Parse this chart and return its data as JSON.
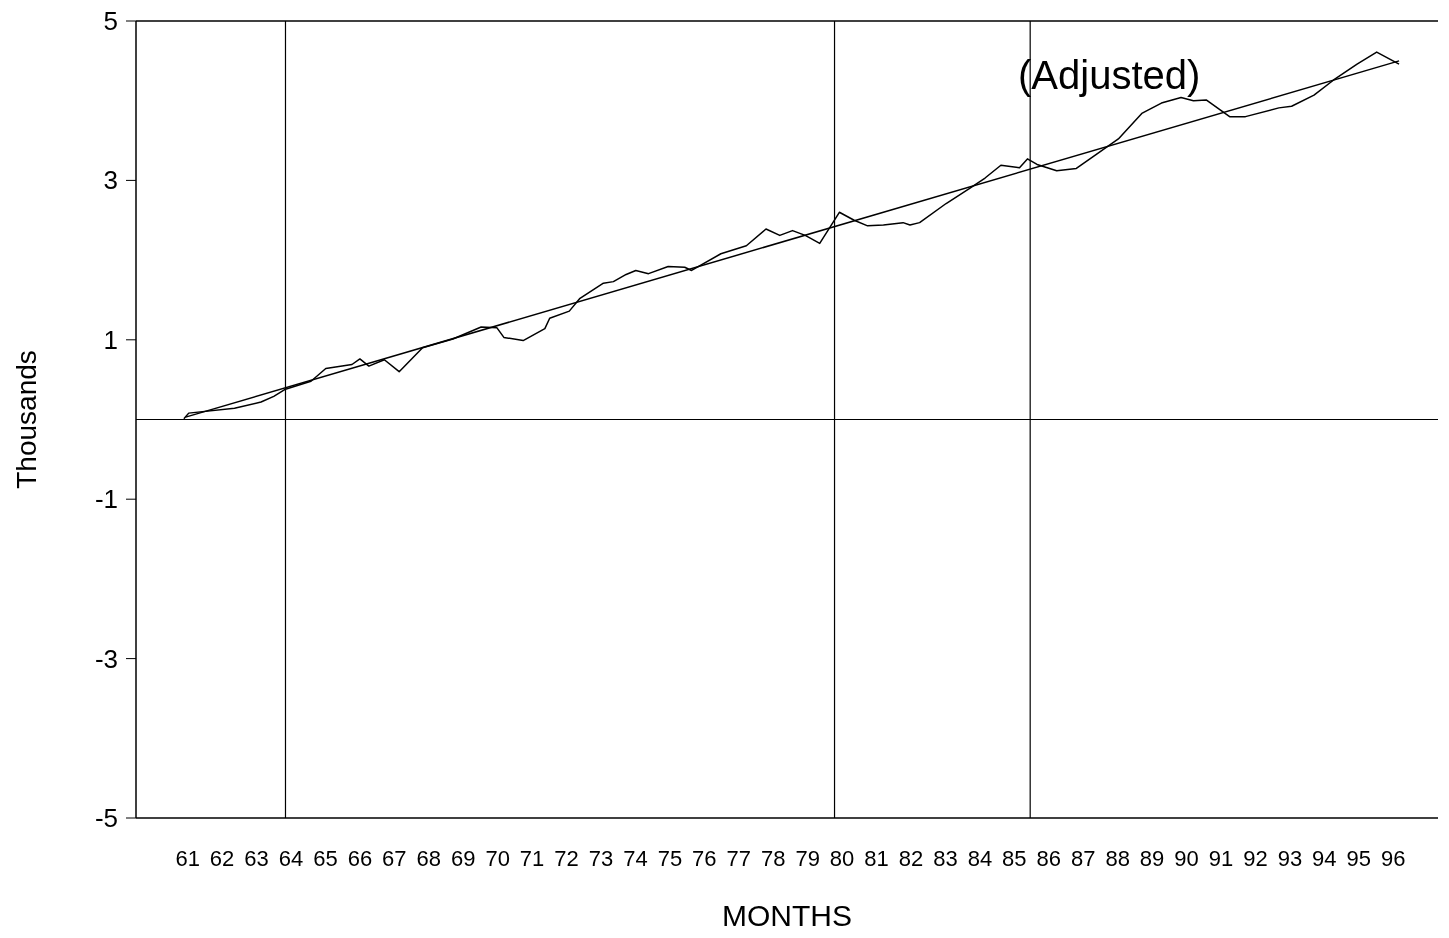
{
  "chart_data": {
    "type": "line",
    "ylabel": "Thousands",
    "xlabel": "MONTHS",
    "annotations": [
      "(Adjusted)"
    ],
    "xlim": [
      59.5,
      97.3
    ],
    "xticks": [
      61,
      62,
      63,
      64,
      65,
      66,
      67,
      68,
      69,
      70,
      71,
      72,
      73,
      74,
      75,
      76,
      77,
      78,
      79,
      80,
      81,
      82,
      83,
      84,
      85,
      86,
      87,
      88,
      89,
      90,
      91,
      92,
      93,
      94,
      95,
      96
    ],
    "ylim": [
      -5,
      5
    ],
    "yticks": [
      -5,
      -3,
      -1,
      1,
      3,
      5
    ],
    "grid": false,
    "legend": false,
    "marker": "none",
    "line_style": "solid",
    "ref_lines": [
      {
        "axis": "x",
        "value": 63.84,
        "color": "#000000"
      },
      {
        "axis": "x",
        "value": 79.78,
        "color": "#000000"
      },
      {
        "axis": "x",
        "value": 85.46,
        "color": "#000000"
      },
      {
        "axis": "y",
        "value": 0,
        "color": "#000000"
      }
    ],
    "series": [
      {
        "type": "line",
        "color": "#000000",
        "x": [
          60.89,
          61.03,
          62.36,
          63.13,
          63.5,
          63.84,
          64.58,
          65.01,
          65.77,
          66.0,
          66.26,
          66.71,
          67.14,
          67.82,
          68.7,
          69.52,
          69.98,
          70.18,
          70.74,
          71.37,
          71.51,
          72.08,
          72.39,
          73.07,
          73.36,
          73.73,
          74.01,
          74.38,
          74.95,
          75.43,
          75.63,
          76.48,
          77.22,
          77.79,
          78.19,
          78.56,
          78.93,
          79.35,
          79.92,
          80.35,
          80.74,
          81.2,
          81.77,
          81.97,
          82.25,
          83.02,
          83.67,
          84.15,
          84.61,
          85.15,
          85.38,
          85.66,
          86.23,
          86.8,
          87.36,
          88.02,
          88.7,
          89.27,
          89.84,
          90.2,
          90.57,
          91.25,
          91.71,
          92.68,
          93.05,
          93.7,
          94.27,
          94.95,
          95.52,
          96.17
        ],
        "values": [
          0.01,
          0.08,
          0.14,
          0.22,
          0.29,
          0.38,
          0.48,
          0.64,
          0.69,
          0.76,
          0.67,
          0.75,
          0.6,
          0.9,
          1.01,
          1.16,
          1.15,
          1.03,
          0.99,
          1.14,
          1.27,
          1.36,
          1.52,
          1.71,
          1.73,
          1.82,
          1.87,
          1.83,
          1.92,
          1.91,
          1.87,
          2.08,
          2.18,
          2.39,
          2.31,
          2.37,
          2.31,
          2.21,
          2.6,
          2.5,
          2.43,
          2.44,
          2.47,
          2.44,
          2.47,
          2.71,
          2.89,
          3.03,
          3.19,
          3.16,
          3.27,
          3.2,
          3.12,
          3.15,
          3.32,
          3.52,
          3.84,
          3.97,
          4.04,
          4.0,
          4.01,
          3.8,
          3.8,
          3.91,
          3.93,
          4.07,
          4.26,
          4.46,
          4.61,
          4.46
        ]
      },
      {
        "type": "line",
        "color": "#000000",
        "x": [
          60.94,
          96.17
        ],
        "values": [
          0.03,
          4.5
        ]
      }
    ]
  }
}
